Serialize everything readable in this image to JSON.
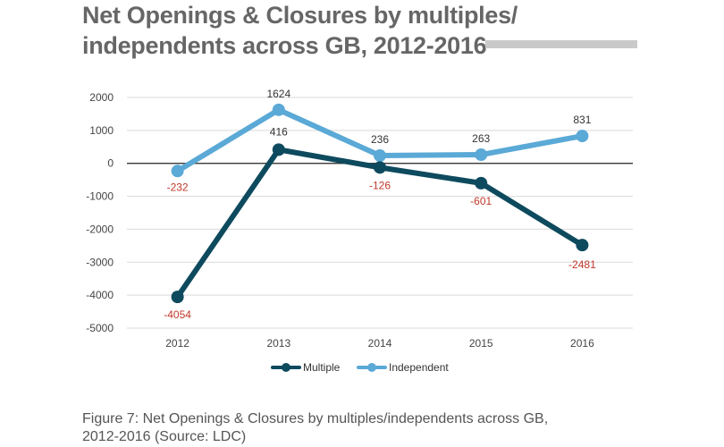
{
  "title_line1": "Net Openings & Closures by multiples/",
  "title_line2": "independents across GB, 2012-2016",
  "caption_line1": "Figure 7: Net Openings & Closures by multiples/independents across GB,",
  "caption_line2": "2012-2016 (Source: LDC)",
  "chart_data": {
    "type": "line",
    "title": "Net Openings & Closures by multiples/independents across GB, 2012-2016",
    "categories": [
      "2012",
      "2013",
      "2014",
      "2015",
      "2016"
    ],
    "ylim": [
      -5000,
      2000
    ],
    "yticks": [
      2000,
      1000,
      0,
      -1000,
      -2000,
      -3000,
      -4000,
      -5000
    ],
    "grid": true,
    "legend": "bottom",
    "series": [
      {
        "name": "Independent",
        "color": "#5aa9d6",
        "values": [
          -232,
          1624,
          236,
          263,
          831
        ],
        "labels": [
          "-232",
          "1624",
          "236",
          "263",
          "831"
        ],
        "label_colors": [
          "#c0392b",
          "#333333",
          "#333333",
          "#333333",
          "#333333"
        ]
      },
      {
        "name": "Multiple",
        "color": "#0e4a5e",
        "values": [
          -4054,
          416,
          -126,
          -601,
          -2481
        ],
        "labels": [
          "-4054",
          "416",
          "-126",
          "-601",
          "-2481"
        ],
        "label_colors": [
          "#c0392b",
          "#333333",
          "#c0392b",
          "#c0392b",
          "#c0392b"
        ]
      }
    ]
  }
}
